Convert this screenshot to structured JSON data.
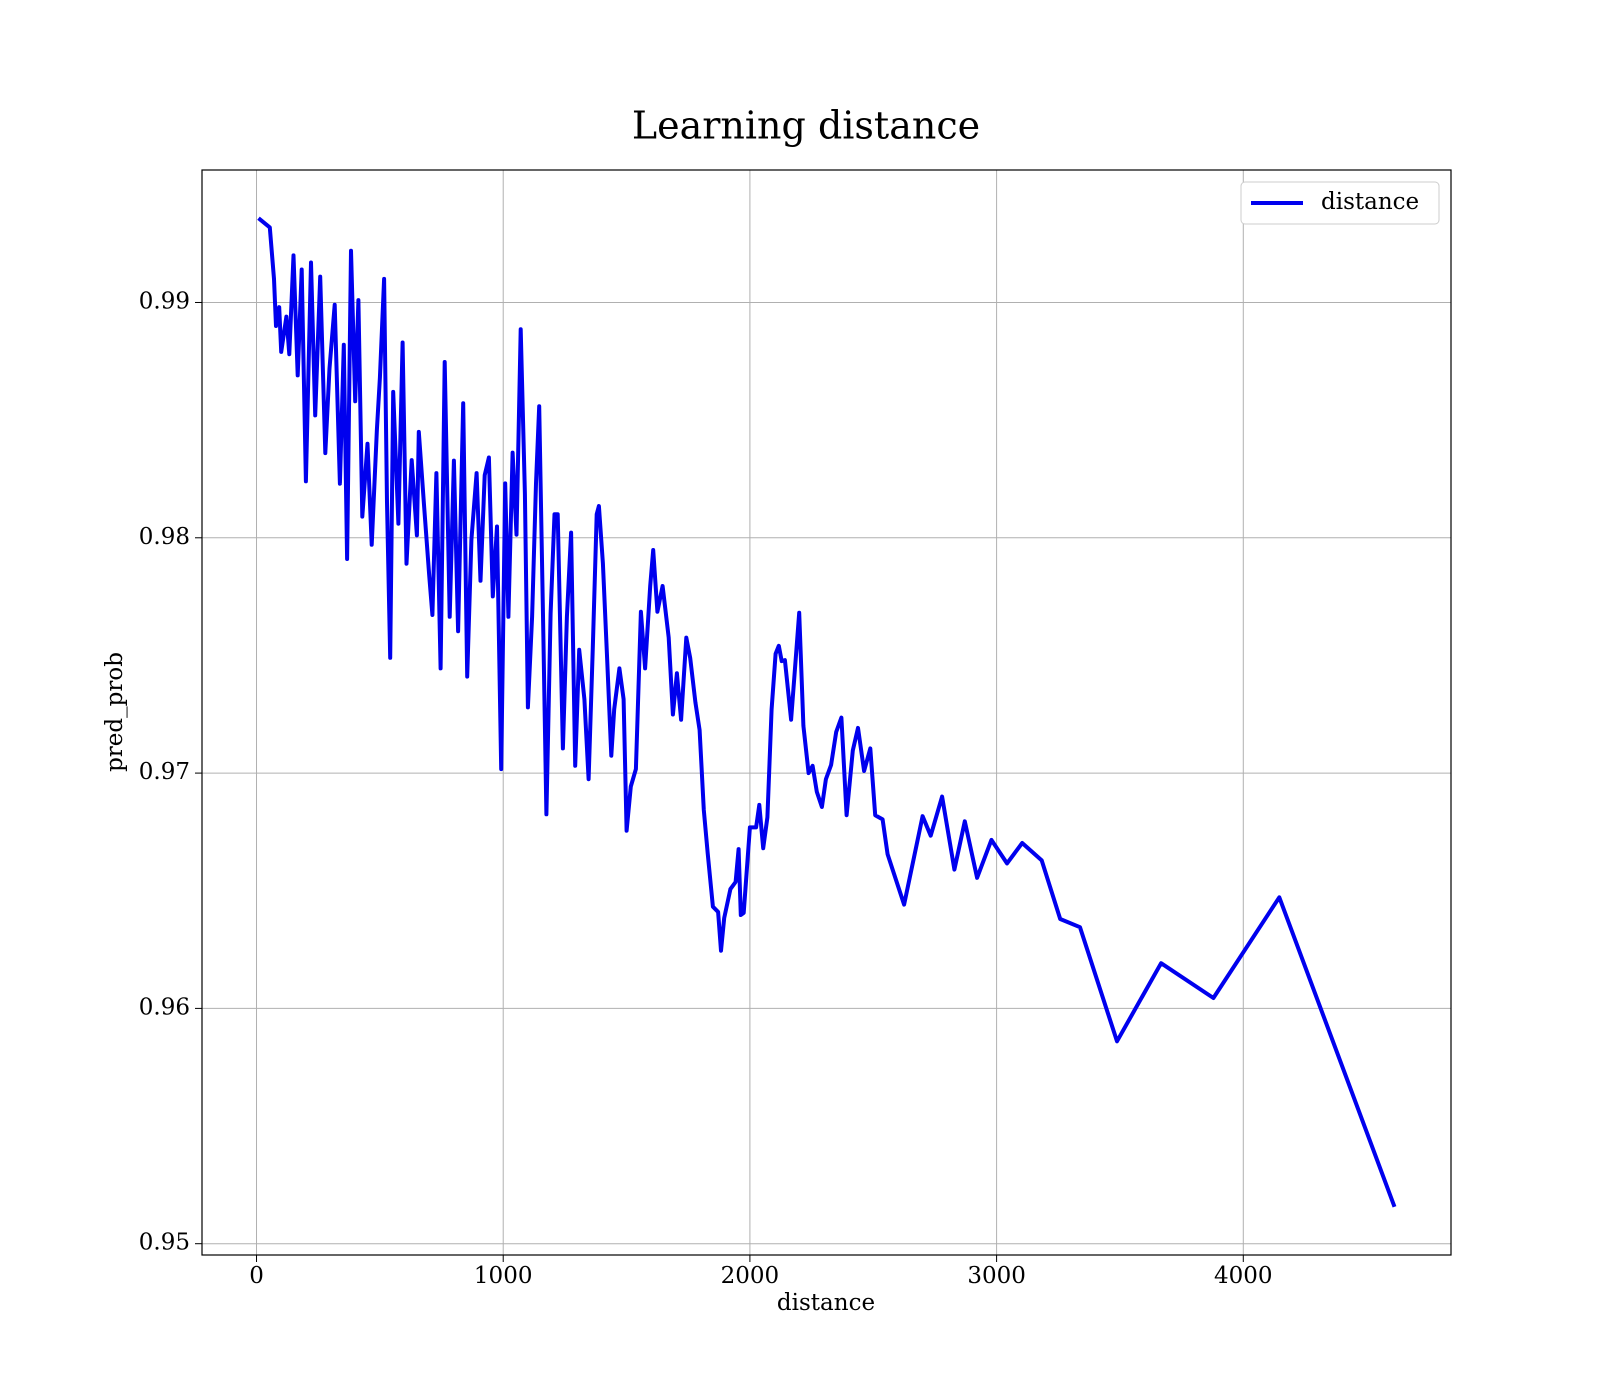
{
  "chart_data": {
    "type": "line",
    "title": "Learning distance",
    "xlabel": "distance",
    "ylabel": "pred_prob",
    "x": [
      8,
      54,
      71,
      79,
      92,
      100,
      121,
      133,
      150,
      167,
      183,
      200,
      221,
      238,
      258,
      279,
      296,
      317,
      338,
      354,
      367,
      383,
      400,
      413,
      429,
      450,
      467,
      488,
      500,
      517,
      529,
      542,
      554,
      575,
      592,
      608,
      629,
      650,
      658,
      679,
      700,
      713,
      729,
      746,
      763,
      783,
      800,
      817,
      838,
      854,
      871,
      892,
      908,
      925,
      942,
      958,
      975,
      992,
      1008,
      1021,
      1038,
      1054,
      1071,
      1088,
      1100,
      1117,
      1133,
      1146,
      1163,
      1175,
      1192,
      1208,
      1221,
      1242,
      1258,
      1275,
      1292,
      1308,
      1329,
      1346,
      1363,
      1379,
      1388,
      1404,
      1421,
      1438,
      1450,
      1471,
      1488,
      1500,
      1517,
      1538,
      1558,
      1575,
      1596,
      1608,
      1625,
      1646,
      1671,
      1688,
      1704,
      1721,
      1742,
      1758,
      1779,
      1796,
      1813,
      1829,
      1850,
      1871,
      1883,
      1896,
      1921,
      1942,
      1954,
      1963,
      1975,
      2000,
      2025,
      2038,
      2054,
      2071,
      2088,
      2104,
      2117,
      2129,
      2142,
      2167,
      2183,
      2200,
      2217,
      2238,
      2254,
      2271,
      2292,
      2308,
      2329,
      2350,
      2371,
      2392,
      2417,
      2438,
      2463,
      2488,
      2508,
      2538,
      2558,
      2625,
      2700,
      2733,
      2779,
      2829,
      2871,
      2921,
      2979,
      3042,
      3104,
      3183,
      3258,
      3338,
      3488,
      3667,
      3879,
      4146,
      4613
    ],
    "series": [
      {
        "name": "distance",
        "color": "#0000ee",
        "values": [
          0.99358,
          0.99319,
          0.991,
          0.989,
          0.9898,
          0.9879,
          0.9894,
          0.9878,
          0.992,
          0.9869,
          0.9914,
          0.9824,
          0.9917,
          0.9852,
          0.9911,
          0.9836,
          0.9872,
          0.9899,
          0.9823,
          0.9882,
          0.9791,
          0.9922,
          0.9858,
          0.9901,
          0.9809,
          0.984,
          0.9797,
          0.9846,
          0.9868,
          0.991,
          0.9815,
          0.9749,
          0.9862,
          0.9806,
          0.9883,
          0.9789,
          0.9833,
          0.9801,
          0.9845,
          0.9814,
          0.9784,
          0.97672,
          0.98275,
          0.97445,
          0.98747,
          0.97664,
          0.98328,
          0.97603,
          0.98572,
          0.9741,
          0.97991,
          0.98275,
          0.97817,
          0.98266,
          0.98341,
          0.97751,
          0.98048,
          0.97017,
          0.98231,
          0.97664,
          0.98362,
          0.98013,
          0.98886,
          0.98188,
          0.97279,
          0.97664,
          0.98231,
          0.98559,
          0.97576,
          0.96825,
          0.97677,
          0.981,
          0.981,
          0.97105,
          0.97664,
          0.98022,
          0.97031,
          0.97524,
          0.97314,
          0.96974,
          0.97533,
          0.981,
          0.98135,
          0.97891,
          0.97489,
          0.97074,
          0.97271,
          0.97445,
          0.97314,
          0.96755,
          0.96943,
          0.97017,
          0.97686,
          0.97445,
          0.97795,
          0.97948,
          0.97686,
          0.97795,
          0.97576,
          0.97249,
          0.97424,
          0.97227,
          0.97576,
          0.97489,
          0.97301,
          0.97183,
          0.96843,
          0.96659,
          0.96432,
          0.9641,
          0.96245,
          0.96384,
          0.96507,
          0.96537,
          0.96677,
          0.96397,
          0.96406,
          0.96769,
          0.96769,
          0.96865,
          0.96681,
          0.96812,
          0.97271,
          0.97507,
          0.97541,
          0.97476,
          0.9748,
          0.97227,
          0.97445,
          0.97681,
          0.97201,
          0.97,
          0.97031,
          0.96921,
          0.96856,
          0.96974,
          0.97035,
          0.97175,
          0.97236,
          0.96821,
          0.97096,
          0.97192,
          0.97009,
          0.97105,
          0.96821,
          0.96803,
          0.96655,
          0.96441,
          0.96817,
          0.96734,
          0.969,
          0.9659,
          0.96795,
          0.96555,
          0.96716,
          0.96616,
          0.96703,
          0.96629,
          0.9638,
          0.96345,
          0.9586,
          0.96192,
          0.96044,
          0.96472,
          0.95157
        ]
      }
    ],
    "xlim": [
      -221,
      4842
    ],
    "ylim": [
      0.94952,
      0.99563
    ],
    "xticks": [
      0,
      1000,
      2000,
      3000,
      4000
    ],
    "yticks": [
      0.95,
      0.96,
      0.97,
      0.98,
      0.99
    ],
    "grid": true,
    "legend": "upper right"
  }
}
